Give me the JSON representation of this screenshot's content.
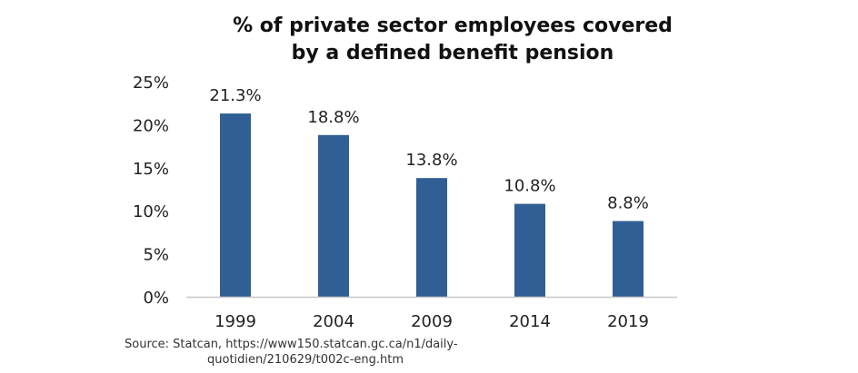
{
  "colors": {
    "bar": "#2f5f94",
    "axis": "#c8c8c8",
    "text": "#222222"
  },
  "chart_data": {
    "type": "bar",
    "title_lines": [
      "% of private sector employees covered",
      "by a defined benefit pension"
    ],
    "categories": [
      "1999",
      "2004",
      "2009",
      "2014",
      "2019"
    ],
    "values": [
      21.3,
      18.8,
      13.8,
      10.8,
      8.8
    ],
    "data_labels": [
      "21.3%",
      "18.8%",
      "13.8%",
      "10.8%",
      "8.8%"
    ],
    "y_ticks": [
      0,
      5,
      10,
      15,
      20,
      25
    ],
    "y_tick_labels": [
      "0%",
      "5%",
      "10%",
      "15%",
      "20%",
      "25%"
    ],
    "ylim": [
      0,
      25
    ],
    "xlabel": "",
    "ylabel": "",
    "grid": false,
    "legend": "none"
  },
  "source": {
    "line1": "Source: Statcan, https://www150.statcan.gc.ca/n1/daily-",
    "line2": "quotidien/210629/t002c-eng.htm"
  }
}
